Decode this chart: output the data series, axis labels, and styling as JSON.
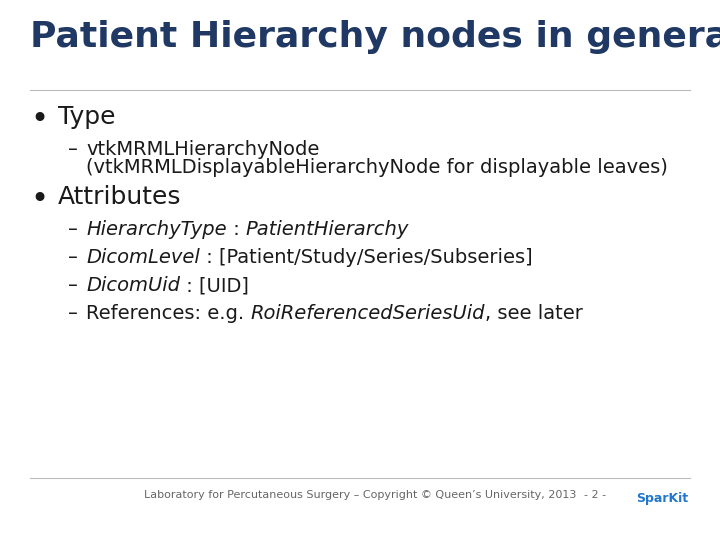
{
  "title": "Patient Hierarchy nodes in general",
  "title_color": "#1F3864",
  "title_fontsize": 26,
  "bg_color": "#FFFFFF",
  "bullet1": "Type",
  "bullet2": "Attributes",
  "bullet_fontsize": 18,
  "sub1_line1": "vtkMRMLHierarchyNode",
  "sub1_line2": "(vtkMRMLDisplayableHierarchyNode for displayable leaves)",
  "sub_fontsize": 14,
  "attr1_italic": "HierarchyType",
  "attr1_sep": " : ",
  "attr1_italic2": "PatientHierarchy",
  "attr2_italic": "DicomLevel",
  "attr2_rest": " : [Patient/Study/Series/Subseries]",
  "attr3_italic": "DicomUid",
  "attr3_rest": " : [UID]",
  "attr4_pre": "References: e.g. ",
  "attr4_italic": "RoiReferencedSeriesUid",
  "attr4_post": ", see later",
  "attr_fontsize": 14,
  "footer_text": "Laboratory for Percutaneous Surgery – Copyright © Queen’s University, 2013",
  "footer_page": "- 2 -",
  "footer_fontsize": 8,
  "footer_color": "#666666",
  "text_color": "#1a1a1a",
  "line_color": "#BBBBBB"
}
